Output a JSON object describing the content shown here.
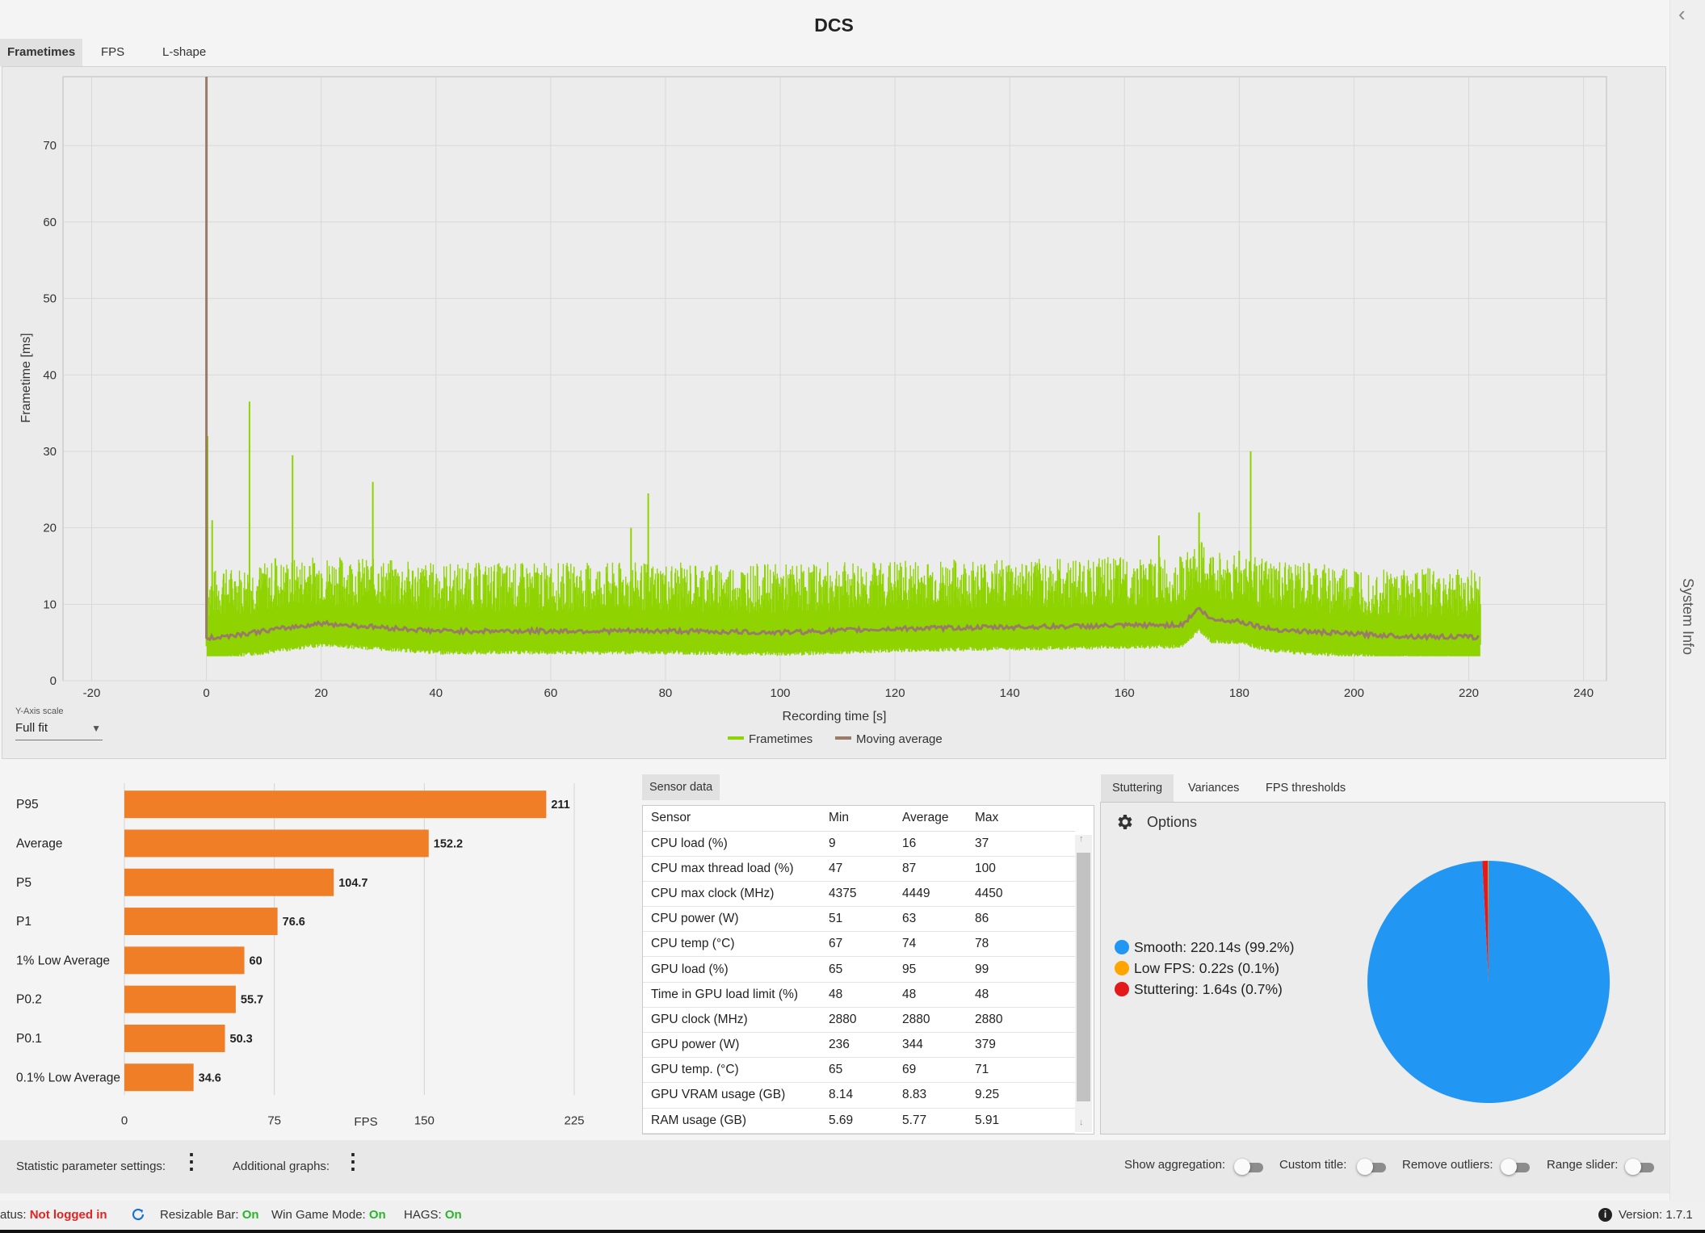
{
  "app": {
    "title": "DCS",
    "system_info_label": "System Info",
    "collapse_icon": "chevron-left-icon"
  },
  "chart_tabs": [
    "Frametimes",
    "FPS",
    "L-shape"
  ],
  "y_axis_scale": {
    "label": "Y-Axis scale",
    "value": "Full fit"
  },
  "chart_data": [
    {
      "type": "line",
      "title": "",
      "xlabel": "Recording time [s]",
      "ylabel": "Frametime [ms]",
      "xlim": [
        -25,
        244
      ],
      "ylim": [
        0,
        79
      ],
      "xticks": [
        -20,
        0,
        20,
        40,
        60,
        80,
        100,
        120,
        140,
        160,
        180,
        200,
        220,
        240
      ],
      "yticks": [
        0,
        10,
        20,
        30,
        40,
        50,
        60,
        70
      ],
      "grid": true,
      "legend": "bottom-center",
      "series": [
        {
          "name": "Frametimes",
          "color": "#8fd400",
          "x": [
            0,
            0.2,
            1,
            3,
            5,
            7,
            7.5,
            10,
            12,
            14,
            15,
            18,
            20,
            25,
            29,
            30,
            35,
            40,
            50,
            60,
            70,
            74,
            77,
            80,
            90,
            100,
            110,
            120,
            130,
            137,
            140,
            150,
            160,
            166,
            170,
            173,
            175,
            180,
            182,
            183,
            190,
            200,
            210,
            222
          ],
          "y": [
            79,
            32,
            21,
            14,
            13,
            12,
            36.5,
            14,
            16,
            14,
            29.5,
            15,
            14,
            15,
            26,
            14,
            13,
            13,
            13,
            14,
            13,
            20,
            24.5,
            13,
            12,
            12,
            12,
            13,
            13,
            14,
            13,
            14,
            13,
            19,
            15,
            22,
            16,
            17,
            30,
            15,
            13,
            11,
            10,
            10
          ]
        },
        {
          "name": "Moving average",
          "color": "#9a7b6a",
          "x": [
            0,
            5,
            10,
            20,
            30,
            40,
            60,
            80,
            100,
            120,
            140,
            160,
            170,
            173,
            175,
            180,
            185,
            190,
            200,
            210,
            222
          ],
          "y": [
            5.5,
            6,
            6.5,
            7.5,
            7,
            6.5,
            6.5,
            6.5,
            6.3,
            6.8,
            7,
            7.2,
            7.3,
            9.5,
            8,
            7.8,
            6.8,
            6.5,
            6.1,
            5.8,
            5.7
          ]
        }
      ]
    },
    {
      "type": "bar",
      "orientation": "horizontal",
      "title": "",
      "xlabel": "FPS",
      "ylabel": "",
      "xlim": [
        0,
        225
      ],
      "xticks": [
        0,
        75,
        150,
        225
      ],
      "grid": true,
      "color": "#f07e26",
      "categories": [
        "P95",
        "Average",
        "P5",
        "P1",
        "1% Low Average",
        "P0.2",
        "P0.1",
        "0.1% Low Average"
      ],
      "values": [
        211,
        152.2,
        104.7,
        76.6,
        60,
        55.7,
        50.3,
        34.6
      ],
      "value_labels": [
        "211",
        "152.2",
        "104.7",
        "76.6",
        "60",
        "55.7",
        "50.3",
        "34.6"
      ]
    },
    {
      "type": "pie",
      "title": "",
      "categories": [
        "Smooth",
        "Low FPS",
        "Stuttering"
      ],
      "values": [
        220.14,
        0.22,
        1.64
      ],
      "colors": [
        "#2196f3",
        "#ffa500",
        "#e31a1a"
      ],
      "legend_labels": [
        "Smooth:  220.14s (99.2%)",
        "Low FPS:  0.22s (0.1%)",
        "Stuttering:  1.64s (0.7%)"
      ],
      "legend": "left"
    }
  ],
  "sensor": {
    "tab": "Sensor data",
    "columns": [
      "Sensor",
      "Min",
      "Average",
      "Max"
    ],
    "rows": [
      [
        "CPU load (%)",
        "9",
        "16",
        "37"
      ],
      [
        "CPU max thread load (%)",
        "47",
        "87",
        "100"
      ],
      [
        "CPU max clock (MHz)",
        "4375",
        "4449",
        "4450"
      ],
      [
        "CPU power (W)",
        "51",
        "63",
        "86"
      ],
      [
        "CPU temp (°C)",
        "67",
        "74",
        "78"
      ],
      [
        "GPU load (%)",
        "65",
        "95",
        "99"
      ],
      [
        "Time in GPU load limit (%)",
        "48",
        "48",
        "48"
      ],
      [
        "GPU clock (MHz)",
        "2880",
        "2880",
        "2880"
      ],
      [
        "GPU power (W)",
        "236",
        "344",
        "379"
      ],
      [
        "GPU temp. (°C)",
        "65",
        "69",
        "71"
      ],
      [
        "GPU VRAM usage (GB)",
        "8.14",
        "8.83",
        "9.25"
      ],
      [
        "RAM usage (GB)",
        "5.69",
        "5.77",
        "5.91"
      ]
    ]
  },
  "stutter_tabs": [
    "Stuttering",
    "Variances",
    "FPS thresholds"
  ],
  "options_label": "Options",
  "bottom_bar": {
    "stat_settings": "Statistic parameter settings:",
    "additional_graphs": "Additional graphs:",
    "show_aggregation": "Show aggregation:",
    "custom_title": "Custom title:",
    "remove_outliers": "Remove outliers:",
    "range_slider": "Range slider:"
  },
  "status_bar": {
    "status_label": "atus:",
    "status_value": "Not logged in",
    "resizable_bar_label": "Resizable Bar:",
    "resizable_bar_value": "On",
    "win_game_mode_label": "Win Game Mode:",
    "win_game_mode_value": "On",
    "hags_label": "HAGS:",
    "hags_value": "On",
    "version": "Version: 1.7.1"
  }
}
